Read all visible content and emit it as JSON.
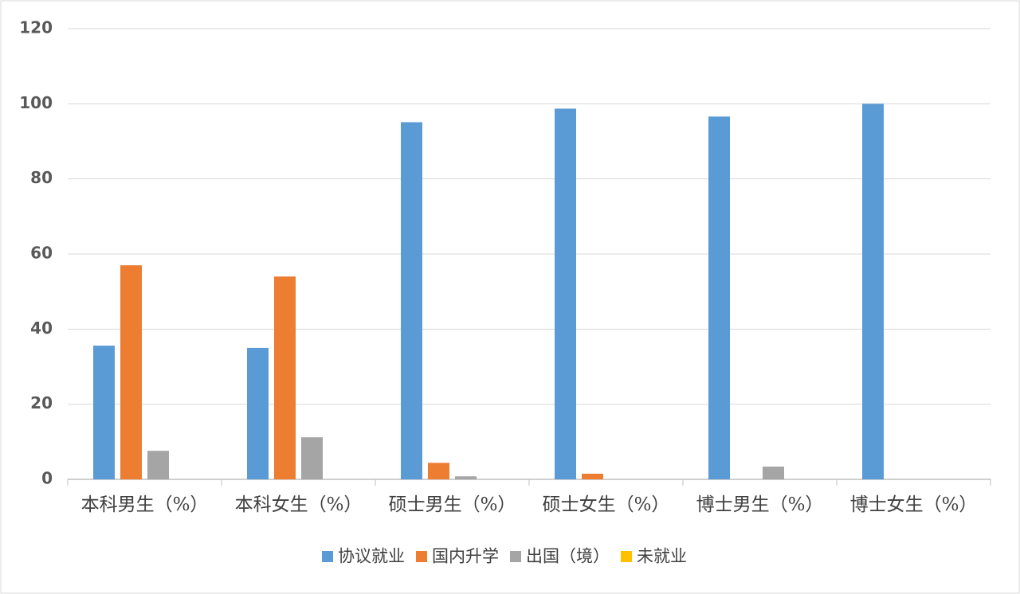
{
  "chart_data": {
    "type": "bar",
    "categories": [
      "本科男生（%）",
      "本科女生（%）",
      "硕士男生（%）",
      "硕士女生（%）",
      "博士男生（%）",
      "博士女生（%）"
    ],
    "series": [
      {
        "name": "协议就业",
        "color": "#5b9bd5",
        "values": [
          35.6,
          35.0,
          95.1,
          98.7,
          96.6,
          100
        ]
      },
      {
        "name": "国内升学",
        "color": "#ed7d31",
        "values": [
          57.0,
          54.0,
          4.4,
          1.5,
          0,
          0
        ]
      },
      {
        "name": "出国（境）",
        "color": "#a5a5a5",
        "values": [
          7.6,
          11.2,
          0.8,
          0,
          3.4,
          0
        ]
      },
      {
        "name": "未就业",
        "color": "#ffc000",
        "values": [
          0,
          0,
          0,
          0,
          0,
          0
        ]
      }
    ],
    "ylim": [
      0,
      120
    ],
    "yticks": [
      0,
      20,
      40,
      60,
      80,
      100,
      120
    ],
    "grid": true,
    "legend": "bottom"
  }
}
